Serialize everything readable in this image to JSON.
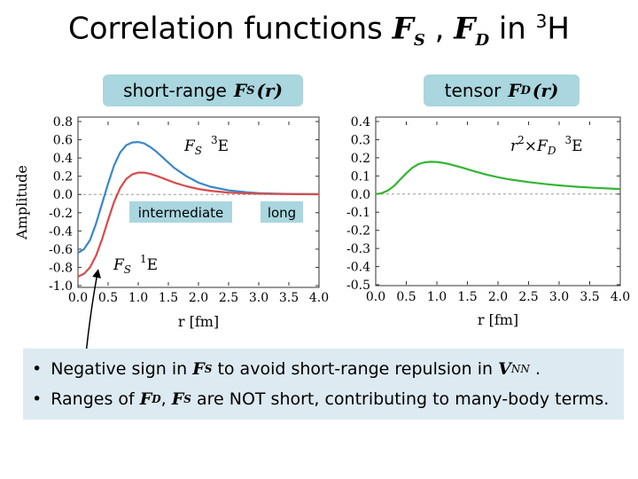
{
  "slide": {
    "title_prefix": "Correlation functions",
    "title_fs_sym": "F",
    "title_fs_sub": "S",
    "title_sep": ",",
    "title_fd_sym": "F",
    "title_fd_sub": "D",
    "title_in": "in",
    "title_nuc_mass": "3",
    "title_nuc": "H",
    "short_range_label": "short-range",
    "fs_func": "F",
    "fs_func_sub": "S",
    "fs_arg": "(r)",
    "tensor_label": "tensor",
    "fd_func": "F",
    "fd_func_sub": "D",
    "fd_arg": "(r)",
    "intermediate_label": "intermediate",
    "long_label": "long",
    "ylabel": "Amplitude",
    "bullet_glyph": "•",
    "bullet1_a": "Negative sign in",
    "bullet1_sym": "F",
    "bullet1_sub": "S",
    "bullet1_b": "to avoid short-range repulsion in",
    "bullet1_v": "V",
    "bullet1_vsub": "NN",
    "bullet1_end": ".",
    "bullet2_a": "Ranges of",
    "bullet2_sym1": "F",
    "bullet2_sub1": "D",
    "bullet2_comma": ",",
    "bullet2_sym2": "F",
    "bullet2_sub2": "S",
    "bullet2_b": "are NOT short, contributing to many-body terms."
  },
  "colors": {
    "blue": "#3a87c8",
    "red": "#d84b4b",
    "green": "#33b533",
    "box": "#a9d6df",
    "bullet_bg": "#ddeaf1"
  },
  "chart_data": [
    {
      "type": "line",
      "xlabel": "r [fm]",
      "ylabel": "Amplitude",
      "xlim": [
        0.0,
        4.0
      ],
      "ylim": [
        -1.0,
        0.8
      ],
      "xticks": [
        "0.0",
        "0.5",
        "1.0",
        "1.5",
        "2.0",
        "2.5",
        "3.0",
        "3.5",
        "4.0"
      ],
      "yticks": [
        "0.8",
        "0.6",
        "0.4",
        "0.2",
        "0.0",
        "-0.2",
        "-0.4",
        "-0.6",
        "-0.8",
        "-1.0"
      ],
      "zero_line": "dashed",
      "series": [
        {
          "name": "FS 3E",
          "legend_sym": "F",
          "legend_sub": "S",
          "legend_mass": "3",
          "legend_e": "E",
          "color": "#3a87c8",
          "x": [
            0.0,
            0.1,
            0.2,
            0.3,
            0.4,
            0.5,
            0.6,
            0.7,
            0.8,
            0.9,
            1.0,
            1.1,
            1.2,
            1.3,
            1.4,
            1.5,
            1.6,
            1.8,
            2.0,
            2.2,
            2.5,
            2.8,
            3.0,
            3.3,
            3.6,
            4.0
          ],
          "y": [
            -0.64,
            -0.6,
            -0.5,
            -0.32,
            -0.1,
            0.12,
            0.32,
            0.46,
            0.54,
            0.57,
            0.575,
            0.56,
            0.52,
            0.47,
            0.41,
            0.35,
            0.29,
            0.2,
            0.13,
            0.085,
            0.045,
            0.025,
            0.015,
            0.008,
            0.005,
            0.003
          ]
        },
        {
          "name": "FS 1E",
          "legend_sym": "F",
          "legend_sub": "S",
          "legend_mass": "1",
          "legend_e": "E",
          "color": "#d84b4b",
          "x": [
            0.0,
            0.1,
            0.2,
            0.3,
            0.4,
            0.5,
            0.6,
            0.7,
            0.8,
            0.9,
            1.0,
            1.1,
            1.2,
            1.3,
            1.4,
            1.5,
            1.6,
            1.8,
            2.0,
            2.2,
            2.5,
            2.8,
            3.0,
            3.3,
            3.6,
            4.0
          ],
          "y": [
            -0.9,
            -0.87,
            -0.8,
            -0.67,
            -0.49,
            -0.28,
            -0.08,
            0.07,
            0.17,
            0.22,
            0.24,
            0.24,
            0.225,
            0.205,
            0.18,
            0.155,
            0.13,
            0.09,
            0.06,
            0.04,
            0.02,
            0.012,
            0.008,
            0.005,
            0.003,
            0.002
          ]
        }
      ]
    },
    {
      "type": "line",
      "xlabel": "r [fm]",
      "xlim": [
        0.0,
        4.0
      ],
      "ylim": [
        -0.5,
        0.4
      ],
      "xticks": [
        "0.0",
        "0.5",
        "1.0",
        "1.5",
        "2.0",
        "2.5",
        "3.0",
        "3.5",
        "4.0"
      ],
      "yticks": [
        "0.4",
        "0.3",
        "0.2",
        "0.1",
        "0.0",
        "-0.1",
        "-0.2",
        "-0.3",
        "-0.4",
        "-0.5"
      ],
      "zero_line": "dashed",
      "series": [
        {
          "name": "r2×FD 3E",
          "legend_r": "r",
          "legend_pow": "2",
          "legend_times": "×",
          "legend_sym": "F",
          "legend_sub": "D",
          "legend_mass": "3",
          "legend_e": "E",
          "color": "#33b533",
          "x": [
            0.0,
            0.1,
            0.2,
            0.3,
            0.4,
            0.5,
            0.6,
            0.7,
            0.8,
            0.9,
            1.0,
            1.1,
            1.2,
            1.4,
            1.6,
            1.8,
            2.0,
            2.2,
            2.5,
            2.8,
            3.0,
            3.3,
            3.6,
            4.0
          ],
          "y": [
            0.0,
            0.005,
            0.02,
            0.045,
            0.08,
            0.115,
            0.145,
            0.165,
            0.175,
            0.178,
            0.177,
            0.172,
            0.165,
            0.147,
            0.127,
            0.108,
            0.093,
            0.08,
            0.066,
            0.054,
            0.048,
            0.04,
            0.034,
            0.028
          ]
        }
      ]
    }
  ]
}
